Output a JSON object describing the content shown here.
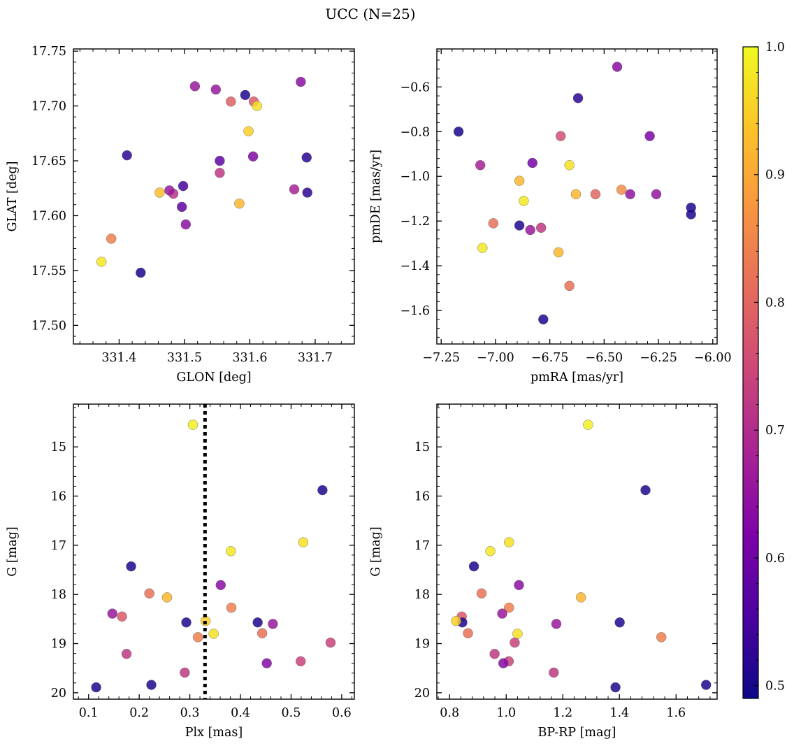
{
  "figure": {
    "title": "UCC (N=25)"
  },
  "colormap": {
    "name": "plasma",
    "vmin": 0.49,
    "vmax": 1.0,
    "ticks": [
      0.5,
      0.6,
      0.7,
      0.8,
      0.9,
      1.0
    ],
    "tick_labels": [
      "0.5",
      "0.6",
      "0.7",
      "0.8",
      "0.9",
      "1.0"
    ]
  },
  "chart_data": [
    {
      "type": "scatter",
      "xlabel": "GLON [deg]",
      "ylabel": "GLAT [deg]",
      "xlim": [
        331.33,
        331.76
      ],
      "ylim": [
        17.483,
        17.752
      ],
      "y_inverted": false,
      "xticks": [
        331.4,
        331.5,
        331.6,
        331.7
      ],
      "xtick_labels": [
        "331.4",
        "331.5",
        "331.6",
        "331.7"
      ],
      "yticks": [
        17.5,
        17.55,
        17.6,
        17.65,
        17.7,
        17.75
      ],
      "ytick_labels": [
        "17.50",
        "17.55",
        "17.60",
        "17.65",
        "17.70",
        "17.75"
      ],
      "x": [
        331.548,
        331.593,
        331.571,
        331.678,
        331.516,
        331.606,
        331.611,
        331.598,
        331.605,
        331.554,
        331.554,
        331.498,
        331.668,
        331.373,
        331.388,
        331.687,
        331.412,
        331.433,
        331.688,
        331.584,
        331.462,
        331.483,
        331.502,
        331.477,
        331.496
      ],
      "y": [
        17.715,
        17.71,
        17.704,
        17.722,
        17.718,
        17.704,
        17.7,
        17.677,
        17.654,
        17.65,
        17.639,
        17.627,
        17.624,
        17.558,
        17.579,
        17.653,
        17.655,
        17.548,
        17.621,
        17.611,
        17.621,
        17.62,
        17.592,
        17.623,
        17.608
      ],
      "c": [
        0.66,
        0.51,
        0.79,
        0.64,
        0.66,
        0.78,
        0.97,
        0.95,
        0.63,
        0.58,
        0.72,
        0.55,
        0.68,
        0.98,
        0.84,
        0.52,
        0.52,
        0.5,
        0.52,
        0.92,
        0.93,
        0.71,
        0.64,
        0.66,
        0.58
      ]
    },
    {
      "type": "scatter",
      "xlabel": "pmRA [mas/yr]",
      "ylabel": "pmDE [mas/yr]",
      "xlim": [
        -7.27,
        -5.98
      ],
      "ylim": [
        -1.75,
        -0.43
      ],
      "y_inverted": false,
      "xticks": [
        -7.25,
        -7.0,
        -6.75,
        -6.5,
        -6.25,
        -6.0
      ],
      "xtick_labels": [
        "−7.25",
        "−7.00",
        "−6.75",
        "−6.50",
        "−6.25",
        "−6.00"
      ],
      "yticks": [
        -1.6,
        -1.4,
        -1.2,
        -1.0,
        -0.8,
        -0.6
      ],
      "ytick_labels": [
        "−1.6",
        "−1.4",
        "−1.2",
        "−1.0",
        "−0.8",
        "−0.6"
      ],
      "x": [
        -6.44,
        -6.62,
        -7.17,
        -6.7,
        -6.29,
        -7.07,
        -6.83,
        -6.66,
        -6.89,
        -6.63,
        -6.54,
        -6.42,
        -6.38,
        -6.26,
        -6.1,
        -6.1,
        -6.87,
        -7.01,
        -6.89,
        -6.84,
        -6.79,
        -7.06,
        -6.71,
        -6.66,
        -6.78
      ],
      "y": [
        -0.51,
        -0.65,
        -0.8,
        -0.82,
        -0.82,
        -0.95,
        -0.94,
        -0.95,
        -1.02,
        -1.08,
        -1.08,
        -1.06,
        -1.08,
        -1.08,
        -1.14,
        -1.17,
        -1.11,
        -1.21,
        -1.22,
        -1.24,
        -1.23,
        -1.32,
        -1.34,
        -1.49,
        -1.64
      ],
      "c": [
        0.64,
        0.52,
        0.5,
        0.76,
        0.62,
        0.68,
        0.61,
        0.97,
        0.92,
        0.92,
        0.8,
        0.86,
        0.65,
        0.65,
        0.51,
        0.51,
        0.98,
        0.82,
        0.51,
        0.66,
        0.72,
        0.98,
        0.92,
        0.82,
        0.51
      ]
    },
    {
      "type": "scatter",
      "xlabel": "Plx [mas]",
      "ylabel": "G [mag]",
      "xlim": [
        0.07,
        0.625
      ],
      "ylim": [
        20.13,
        14.13
      ],
      "y_inverted": true,
      "vline": {
        "x": 0.33,
        "style": "dotted",
        "color": "#000000"
      },
      "xticks": [
        0.1,
        0.2,
        0.3,
        0.4,
        0.5,
        0.6
      ],
      "xtick_labels": [
        "0.1",
        "0.2",
        "0.3",
        "0.4",
        "0.5",
        "0.6"
      ],
      "yticks": [
        15,
        16,
        17,
        18,
        19,
        20
      ],
      "ytick_labels": [
        "15",
        "16",
        "17",
        "18",
        "19",
        "20"
      ],
      "x": [
        0.306,
        0.562,
        0.524,
        0.381,
        0.184,
        0.361,
        0.22,
        0.255,
        0.382,
        0.147,
        0.166,
        0.293,
        0.331,
        0.434,
        0.464,
        0.347,
        0.316,
        0.443,
        0.578,
        0.519,
        0.175,
        0.452,
        0.29,
        0.115,
        0.224
      ],
      "y": [
        14.55,
        15.88,
        16.94,
        17.12,
        17.43,
        17.81,
        17.98,
        18.06,
        18.27,
        18.39,
        18.45,
        18.57,
        18.54,
        18.57,
        18.6,
        18.8,
        18.87,
        18.79,
        18.98,
        19.36,
        19.21,
        19.4,
        19.59,
        19.89,
        19.84
      ],
      "c": [
        0.99,
        0.51,
        0.97,
        0.98,
        0.51,
        0.64,
        0.82,
        0.92,
        0.84,
        0.66,
        0.78,
        0.51,
        0.95,
        0.51,
        0.66,
        0.97,
        0.84,
        0.82,
        0.74,
        0.74,
        0.72,
        0.63,
        0.72,
        0.51,
        0.51
      ]
    },
    {
      "type": "scatter",
      "xlabel": "BP-RP [mag]",
      "ylabel": "G [mag]",
      "xlim": [
        0.755,
        1.745
      ],
      "ylim": [
        20.13,
        14.13
      ],
      "y_inverted": true,
      "xticks": [
        0.8,
        1.0,
        1.2,
        1.4,
        1.6
      ],
      "xtick_labels": [
        "0.8",
        "1.0",
        "1.2",
        "1.4",
        "1.6"
      ],
      "yticks": [
        15,
        16,
        17,
        18,
        19,
        20
      ],
      "ytick_labels": [
        "15",
        "16",
        "17",
        "18",
        "19",
        "20"
      ],
      "x": [
        1.289,
        1.492,
        1.01,
        0.944,
        0.886,
        1.045,
        0.913,
        1.264,
        1.01,
        0.986,
        0.843,
        0.845,
        0.823,
        1.401,
        1.177,
        1.04,
        1.548,
        0.865,
        1.03,
        1.009,
        0.959,
        0.99,
        1.168,
        1.386,
        1.706
      ],
      "y": [
        14.55,
        15.88,
        16.94,
        17.12,
        17.43,
        17.81,
        17.98,
        18.06,
        18.27,
        18.39,
        18.45,
        18.57,
        18.54,
        18.57,
        18.6,
        18.8,
        18.87,
        18.79,
        18.98,
        19.36,
        19.21,
        19.4,
        19.59,
        19.89,
        19.84
      ],
      "c": [
        0.99,
        0.51,
        0.97,
        0.98,
        0.51,
        0.64,
        0.82,
        0.92,
        0.84,
        0.66,
        0.78,
        0.51,
        0.95,
        0.51,
        0.66,
        0.97,
        0.84,
        0.82,
        0.74,
        0.74,
        0.72,
        0.63,
        0.72,
        0.51,
        0.51
      ]
    }
  ]
}
